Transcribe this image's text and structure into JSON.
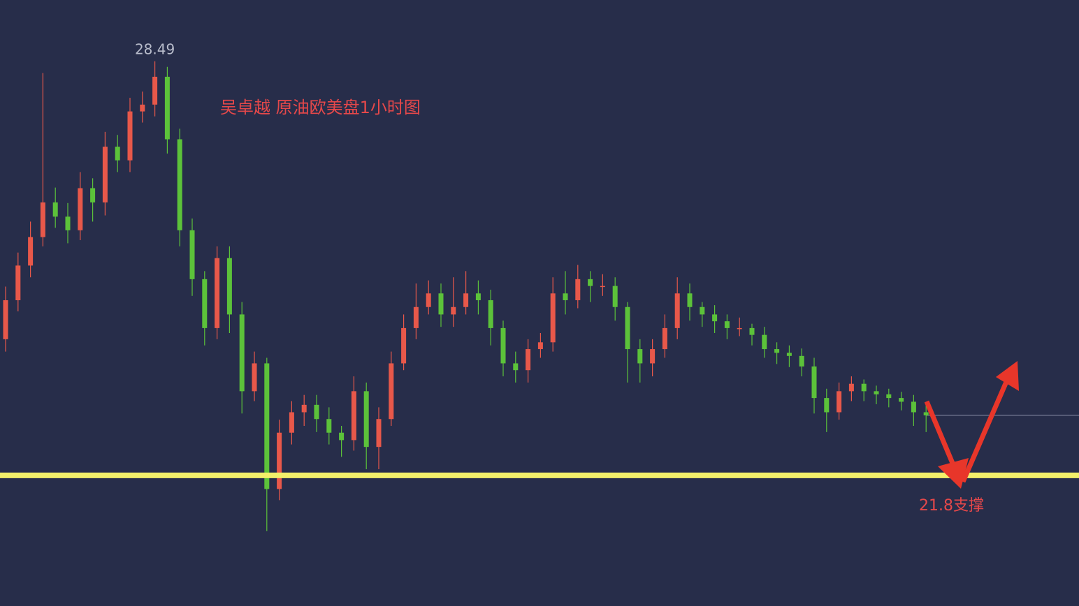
{
  "chart_data": {
    "type": "candlestick",
    "title": "吴卓越 原油欧美盘1小时图",
    "ylim": [
      19.69,
      29.48
    ],
    "up_color": "#e8584a",
    "down_color": "#5cc23a",
    "candles": {
      "open": [
        24.0,
        24.63,
        25.19,
        25.65,
        26.21,
        25.98,
        25.76,
        26.44,
        26.21,
        27.11,
        26.89,
        27.68,
        27.79,
        28.24,
        27.23,
        25.76,
        24.97,
        24.18,
        25.31,
        24.4,
        23.16,
        23.61,
        21.58,
        22.49,
        22.82,
        22.94,
        22.71,
        22.49,
        22.37,
        23.16,
        22.26,
        22.71,
        23.61,
        24.18,
        24.52,
        24.74,
        24.4,
        24.52,
        24.74,
        24.63,
        24.18,
        23.61,
        23.5,
        23.84,
        23.95,
        24.74,
        24.63,
        24.97,
        24.86,
        24.86,
        24.52,
        23.84,
        23.61,
        23.84,
        24.18,
        24.74,
        24.52,
        24.4,
        24.29,
        24.18,
        24.18,
        24.07,
        23.84,
        23.78,
        23.73,
        23.56,
        23.05,
        22.82,
        23.16,
        23.28,
        23.16,
        23.11,
        23.05,
        22.99,
        22.82
      ],
      "high": [
        24.85,
        25.4,
        25.9,
        28.3,
        26.45,
        26.2,
        26.7,
        26.6,
        27.35,
        27.3,
        27.9,
        28.0,
        28.49,
        28.4,
        27.4,
        25.95,
        25.1,
        25.5,
        25.5,
        24.6,
        23.8,
        23.7,
        22.7,
        23.0,
        23.1,
        23.1,
        22.9,
        22.6,
        23.4,
        23.3,
        22.9,
        23.8,
        24.4,
        24.9,
        24.95,
        24.9,
        25.0,
        25.1,
        24.95,
        24.8,
        24.3,
        23.8,
        24.0,
        24.1,
        25.0,
        25.1,
        25.2,
        25.1,
        25.05,
        25.0,
        24.6,
        24.0,
        24.0,
        24.4,
        25.0,
        24.9,
        24.6,
        24.55,
        24.4,
        24.35,
        24.25,
        24.2,
        23.95,
        23.9,
        23.85,
        23.7,
        23.2,
        23.3,
        23.4,
        23.35,
        23.25,
        23.2,
        23.15,
        23.1,
        22.95
      ],
      "low": [
        23.8,
        24.45,
        25.0,
        25.5,
        25.8,
        25.55,
        25.6,
        25.9,
        26.0,
        26.7,
        26.7,
        27.5,
        27.6,
        27.0,
        25.5,
        24.7,
        23.9,
        24.0,
        24.1,
        22.8,
        23.0,
        20.9,
        21.4,
        22.3,
        22.6,
        22.5,
        22.3,
        22.1,
        22.2,
        21.9,
        21.9,
        22.6,
        23.5,
        24.0,
        24.4,
        24.2,
        24.2,
        24.4,
        24.4,
        23.9,
        23.4,
        23.3,
        23.3,
        23.7,
        23.8,
        24.4,
        24.5,
        24.6,
        24.7,
        24.3,
        23.3,
        23.3,
        23.4,
        23.7,
        24.0,
        24.3,
        24.2,
        24.1,
        24.0,
        24.05,
        23.9,
        23.7,
        23.6,
        23.55,
        23.4,
        22.8,
        22.5,
        22.7,
        23.0,
        23.0,
        22.95,
        22.9,
        22.85,
        22.6,
        22.5
      ],
      "close": [
        24.63,
        25.19,
        25.65,
        26.21,
        25.98,
        25.76,
        26.44,
        26.21,
        27.11,
        26.89,
        27.68,
        27.79,
        28.24,
        27.23,
        25.76,
        24.97,
        24.18,
        25.31,
        24.4,
        23.16,
        23.61,
        21.58,
        22.49,
        22.82,
        22.94,
        22.71,
        22.49,
        22.37,
        23.16,
        22.26,
        22.71,
        23.61,
        24.18,
        24.52,
        24.74,
        24.4,
        24.52,
        24.74,
        24.63,
        24.18,
        23.61,
        23.5,
        23.84,
        23.95,
        24.74,
        24.63,
        24.97,
        24.86,
        24.86,
        24.52,
        23.84,
        23.61,
        23.84,
        24.18,
        24.74,
        24.52,
        24.4,
        24.29,
        24.18,
        24.18,
        24.07,
        23.84,
        23.78,
        23.73,
        23.56,
        23.05,
        22.82,
        23.16,
        23.28,
        23.16,
        23.11,
        23.05,
        22.99,
        22.82,
        22.77
      ]
    },
    "support": {
      "value": 21.8,
      "label": "21.8支撑",
      "color": "#f4f06a"
    }
  }
}
